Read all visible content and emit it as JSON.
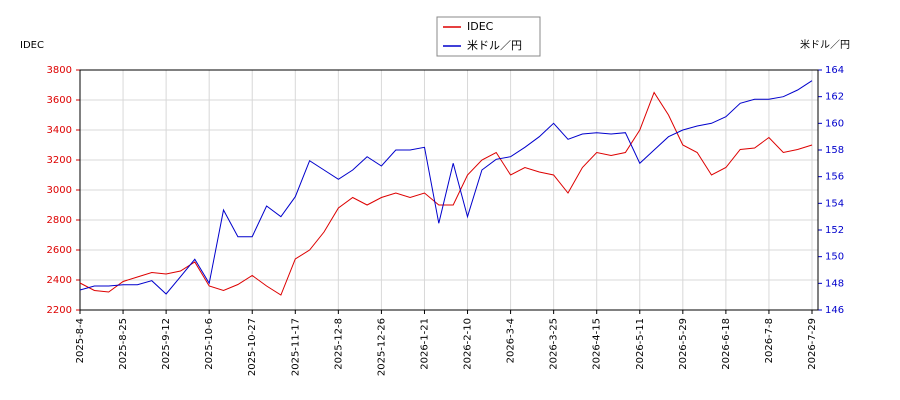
{
  "chart_data": {
    "type": "line",
    "x": [
      "2025-8-4",
      null,
      null,
      "2025-8-25",
      null,
      null,
      "2025-9-12",
      null,
      null,
      "2025-10-6",
      null,
      null,
      "2025-10-27",
      null,
      null,
      "2025-11-17",
      null,
      null,
      "2025-12-8",
      null,
      null,
      "2025-12-26",
      null,
      null,
      "2026-1-21",
      null,
      null,
      "2026-2-10",
      null,
      null,
      "2026-3-4",
      null,
      null,
      "2026-3-25",
      null,
      null,
      "2026-4-15",
      null,
      null,
      "2026-5-11",
      null,
      null,
      "2026-5-29",
      null,
      null,
      "2026-6-18",
      null,
      null,
      "2026-7-8",
      null,
      null,
      "2026-7-29"
    ],
    "series": [
      {
        "name": "IDEC",
        "color": "#dd0000",
        "values": [
          2380,
          2330,
          2320,
          2390,
          2420,
          2450,
          2440,
          2460,
          2520,
          2360,
          2330,
          2370,
          2430,
          2360,
          2300,
          2540,
          2600,
          2720,
          2880,
          2950,
          2900,
          2950,
          2980,
          2950,
          2980,
          2900,
          2900,
          3100,
          3200,
          3250,
          3100,
          3150,
          3120,
          3100,
          2980,
          3150,
          3250,
          3230,
          3250,
          3400,
          3650,
          3500,
          3300,
          3250,
          3100,
          3150,
          3270,
          3280,
          3350,
          3250,
          3270,
          3300
        ]
      },
      {
        "name": "米ドル／円",
        "color": "#0000cc",
        "axis": "y2",
        "values": [
          147.5,
          147.8,
          147.8,
          147.9,
          147.9,
          148.2,
          147.2,
          148.5,
          149.8,
          148.0,
          153.5,
          151.5,
          151.5,
          153.8,
          153.0,
          154.5,
          157.2,
          156.5,
          155.8,
          156.5,
          157.5,
          156.8,
          158.0,
          158.0,
          158.2,
          152.5,
          157.0,
          153.0,
          156.5,
          157.3,
          157.5,
          158.2,
          159.0,
          160.0,
          158.8,
          159.2,
          159.3,
          159.2,
          159.3,
          157.0,
          158.0,
          159.0,
          159.5,
          159.8,
          160.0,
          160.5,
          161.5,
          161.8,
          161.8,
          162.0,
          162.5,
          163.2
        ]
      }
    ],
    "ylabel": "IDEC",
    "y2label": "米ドル／円",
    "ylim": [
      2200,
      3800
    ],
    "yticks": [
      2200,
      2400,
      2600,
      2800,
      3000,
      3200,
      3400,
      3600,
      3800
    ],
    "y2lim": [
      146,
      164
    ],
    "y2ticks": [
      146,
      148,
      150,
      152,
      154,
      156,
      158,
      160,
      162,
      164
    ],
    "grid": true,
    "legend": "top"
  }
}
